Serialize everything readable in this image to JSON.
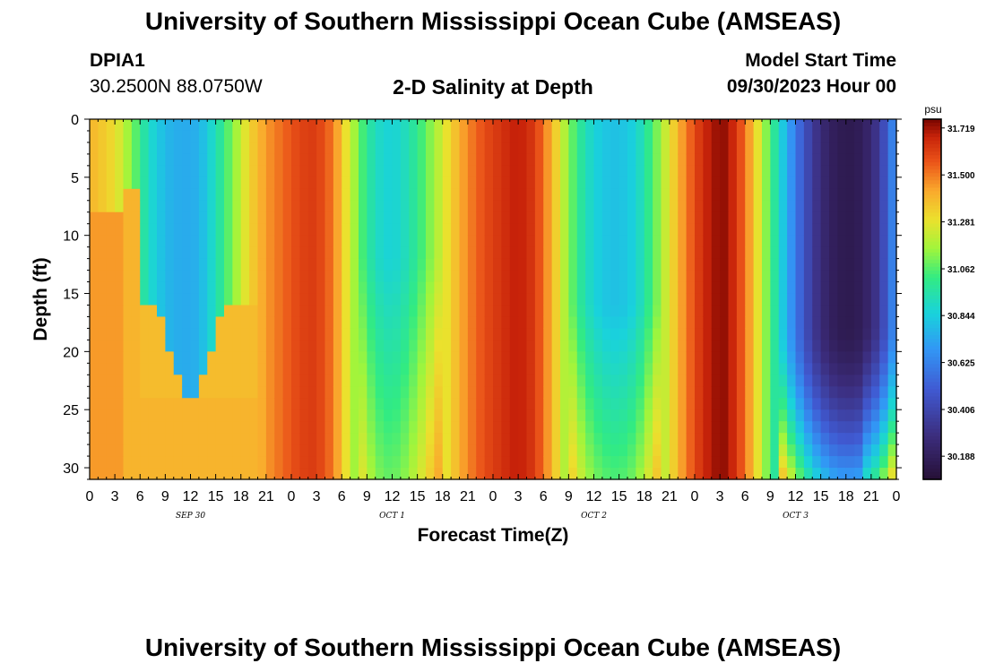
{
  "header": {
    "title": "University of Southern Mississippi Ocean Cube (AMSEAS)",
    "footer_title": "University of Southern Mississippi Ocean Cube (AMSEAS)",
    "station_id": "DPIA1",
    "station_coords": "30.2500N  88.0750W",
    "model_start_label": "Model Start Time",
    "model_start_value": "09/30/2023 Hour 00"
  },
  "chart_data": {
    "type": "heatmap",
    "title": "2-D Salinity at Depth",
    "xlabel": "Forecast Time(Z)",
    "ylabel": "Depth (ft)",
    "x_hours": [
      0,
      96
    ],
    "x_tick_labels": [
      "0",
      "3",
      "6",
      "9",
      "12",
      "15",
      "18",
      "21",
      "0",
      "3",
      "6",
      "9",
      "12",
      "15",
      "18",
      "21",
      "0",
      "3",
      "6",
      "9",
      "12",
      "15",
      "18",
      "21",
      "0",
      "3",
      "6",
      "9",
      "12",
      "15",
      "18",
      "21",
      "0"
    ],
    "date_labels": [
      {
        "label": "SEP 30",
        "hour": 12
      },
      {
        "label": "OCT 1",
        "hour": 36
      },
      {
        "label": "OCT 2",
        "hour": 60
      },
      {
        "label": "OCT 3",
        "hour": 84
      }
    ],
    "ylim": [
      0,
      31
    ],
    "y_ticks": [
      0,
      5,
      10,
      15,
      20,
      25,
      30
    ],
    "colorbar": {
      "unit": "psu",
      "min": 30.08,
      "max": 31.76,
      "tick_values": [
        "31.719",
        "31.500",
        "31.281",
        "31.062",
        "30.844",
        "30.625",
        "30.406",
        "30.188"
      ]
    }
  }
}
